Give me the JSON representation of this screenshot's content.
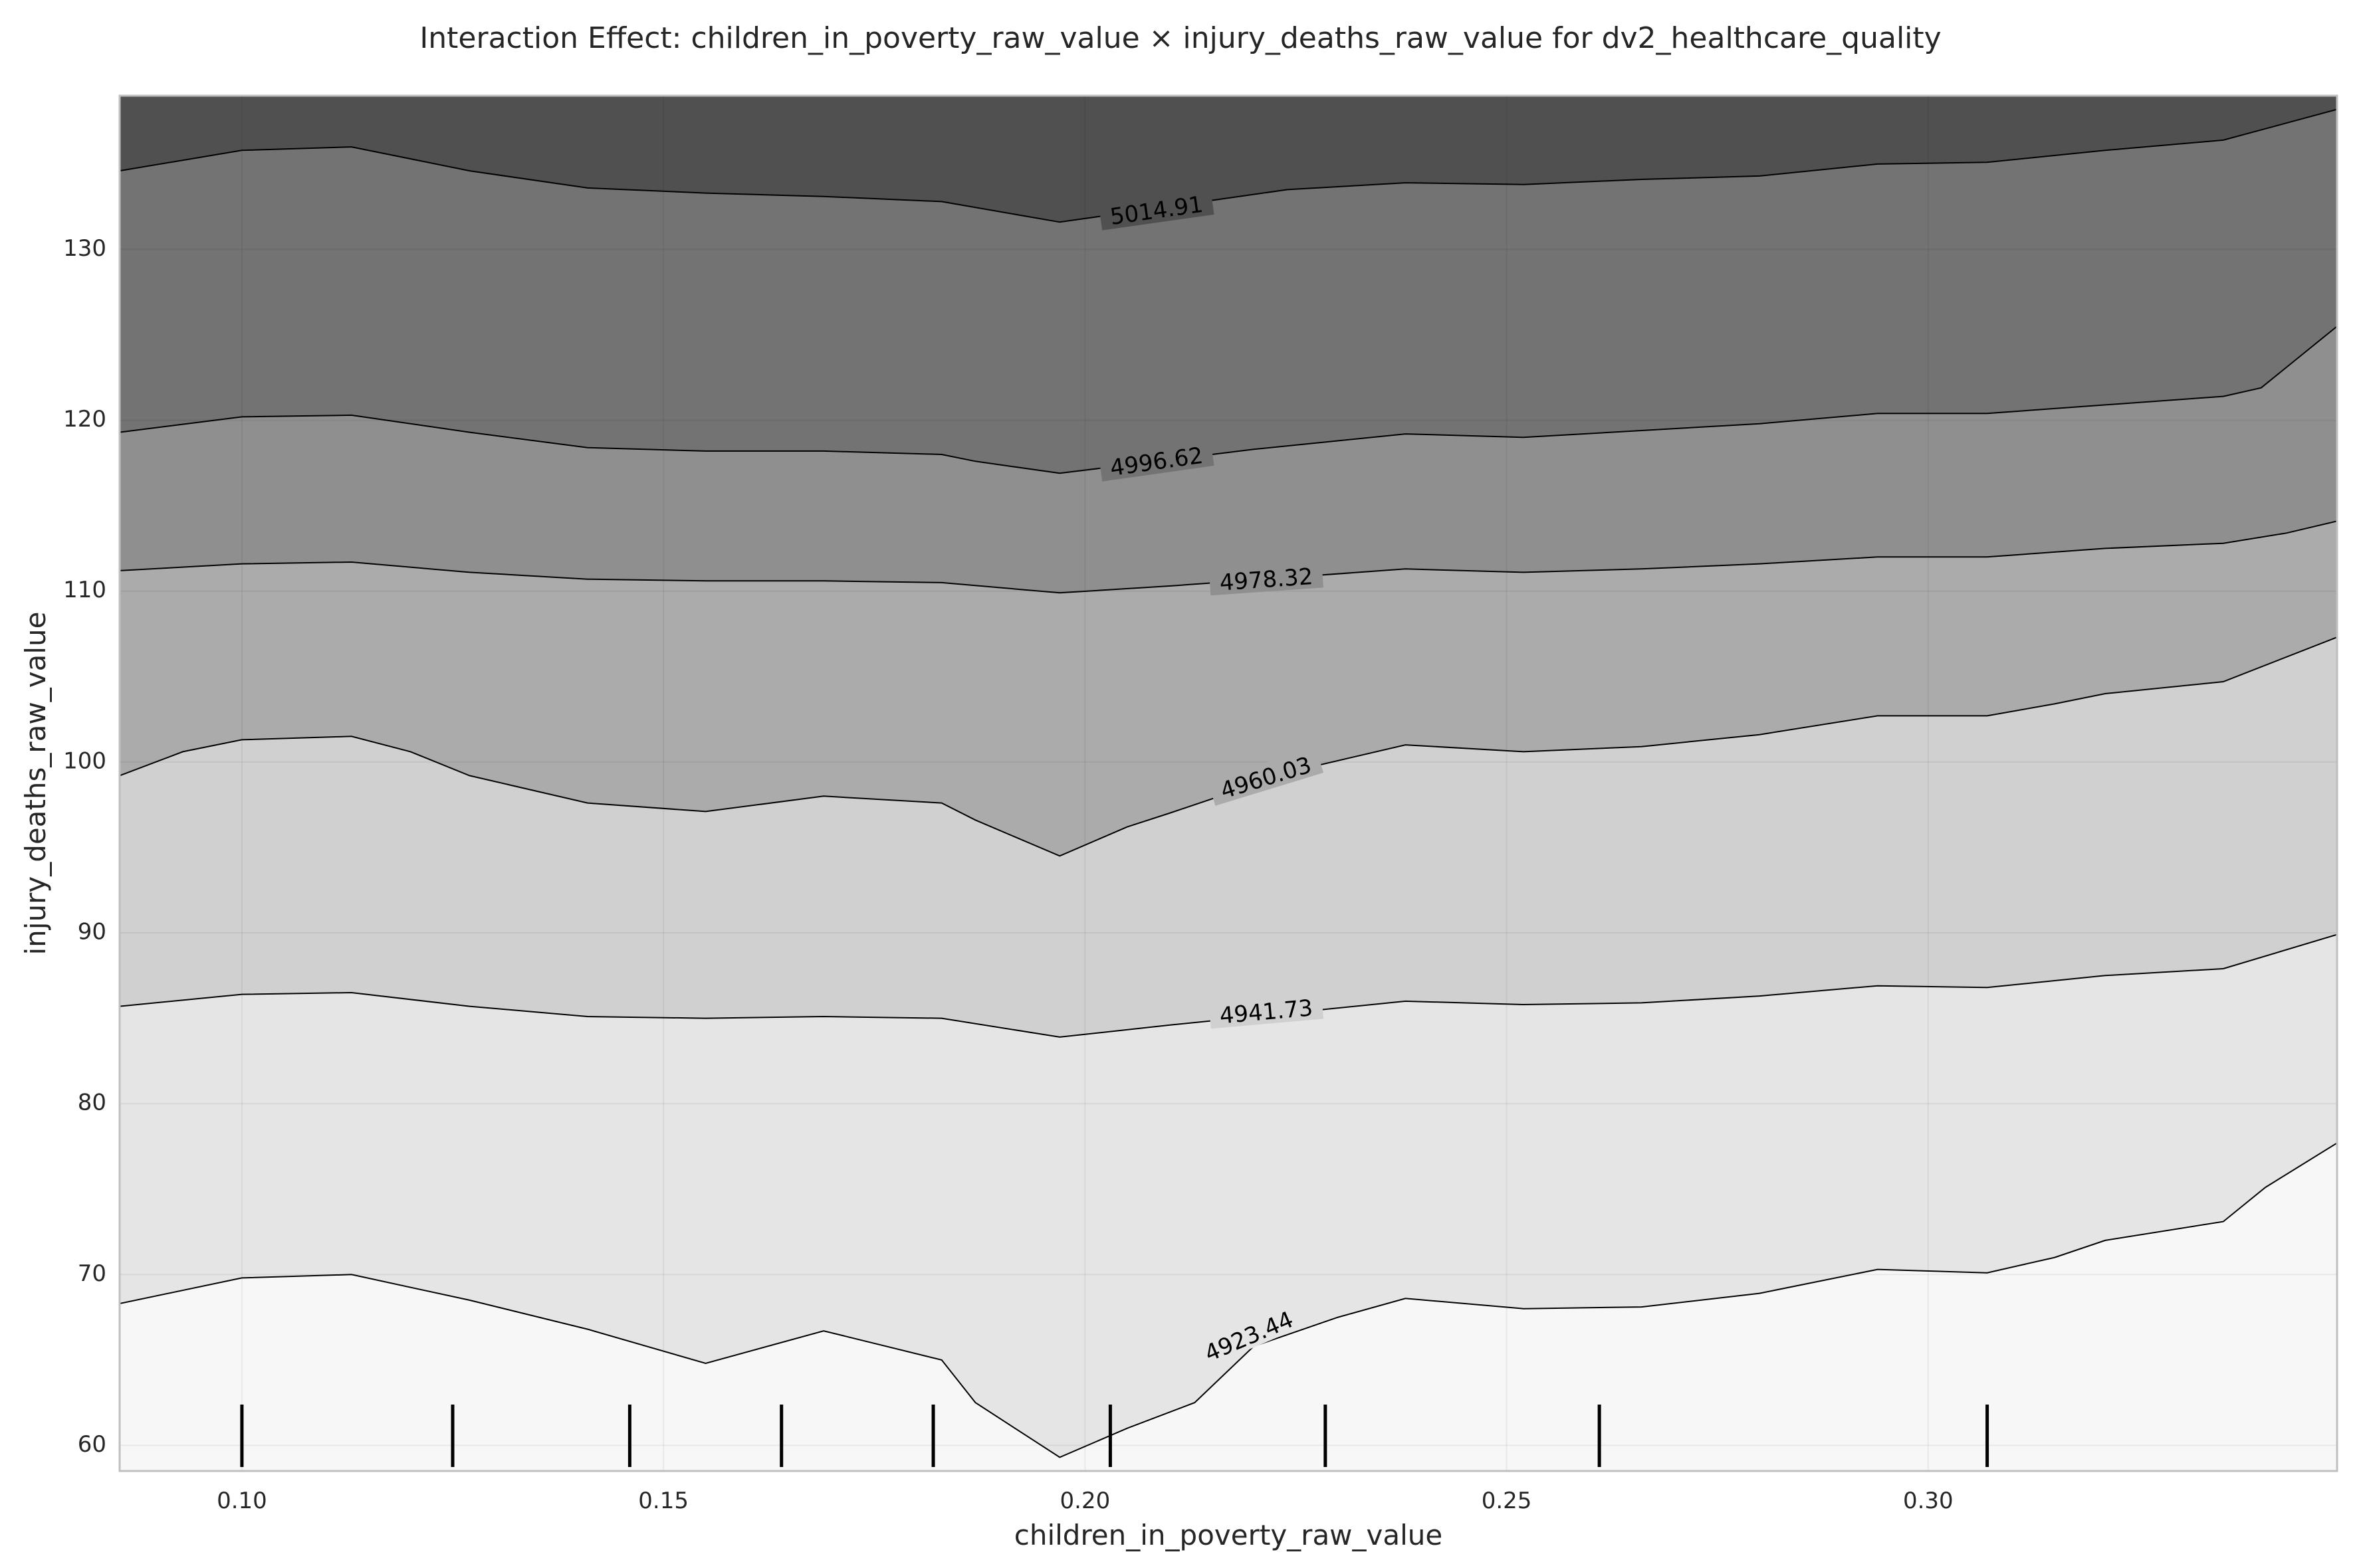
{
  "chart_data": {
    "type": "contour",
    "title": "Interaction Effect: children_in_poverty_raw_value × injury_deaths_raw_value for dv2_healthcare_quality",
    "xlabel": "children_in_poverty_raw_value",
    "ylabel": "injury_deaths_raw_value",
    "xlim": [
      0.0855,
      0.3485
    ],
    "ylim": [
      58.5,
      139
    ],
    "x_ticks": [
      0.1,
      0.15,
      0.2,
      0.25,
      0.3
    ],
    "x_tick_labels": [
      "0.10",
      "0.15",
      "0.20",
      "0.25",
      "0.30"
    ],
    "y_ticks": [
      60,
      70,
      80,
      90,
      100,
      110,
      120,
      130
    ],
    "y_tick_labels": [
      "60",
      "70",
      "80",
      "90",
      "100",
      "110",
      "120",
      "130"
    ],
    "grid": true,
    "colormap": "Greys",
    "level_colors": [
      "#f7f7f7",
      "#e5e5e5",
      "#d0d0d0",
      "#ababab",
      "#8f8f8f",
      "#737373",
      "#505050"
    ],
    "contour_levels": [
      {
        "label": "4923.44",
        "label_at": [
          0.2195,
          66.3
        ],
        "label_angle": -23,
        "points": [
          [
            0.0855,
            68.3
          ],
          [
            0.1,
            69.8
          ],
          [
            0.113,
            70.0
          ],
          [
            0.127,
            68.5
          ],
          [
            0.141,
            66.8
          ],
          [
            0.155,
            64.8
          ],
          [
            0.169,
            66.7
          ],
          [
            0.183,
            65.0
          ],
          [
            0.187,
            62.5
          ],
          [
            0.197,
            59.3
          ],
          [
            0.205,
            61.0
          ],
          [
            0.213,
            62.5
          ],
          [
            0.22,
            65.8
          ],
          [
            0.23,
            67.5
          ],
          [
            0.238,
            68.6
          ],
          [
            0.252,
            68.0
          ],
          [
            0.266,
            68.1
          ],
          [
            0.28,
            68.9
          ],
          [
            0.294,
            70.3
          ],
          [
            0.307,
            70.1
          ],
          [
            0.315,
            71.0
          ],
          [
            0.321,
            72.0
          ],
          [
            0.335,
            73.1
          ],
          [
            0.34,
            75.1
          ],
          [
            0.3485,
            77.7
          ]
        ]
      },
      {
        "label": "4941.73",
        "label_at": [
          0.2215,
          85.3
        ],
        "label_angle": -5,
        "points": [
          [
            0.0855,
            85.7
          ],
          [
            0.1,
            86.4
          ],
          [
            0.113,
            86.5
          ],
          [
            0.127,
            85.7
          ],
          [
            0.141,
            85.1
          ],
          [
            0.155,
            85.0
          ],
          [
            0.169,
            85.1
          ],
          [
            0.183,
            85.0
          ],
          [
            0.197,
            83.9
          ],
          [
            0.21,
            84.6
          ],
          [
            0.238,
            86.0
          ],
          [
            0.252,
            85.8
          ],
          [
            0.266,
            85.9
          ],
          [
            0.28,
            86.3
          ],
          [
            0.294,
            86.9
          ],
          [
            0.307,
            86.8
          ],
          [
            0.321,
            87.5
          ],
          [
            0.335,
            87.9
          ],
          [
            0.3485,
            89.9
          ]
        ]
      },
      {
        "label": "4960.03",
        "label_at": [
          0.2215,
          99.0
        ],
        "label_angle": -17,
        "points": [
          [
            0.0855,
            99.2
          ],
          [
            0.093,
            100.6
          ],
          [
            0.1,
            101.3
          ],
          [
            0.113,
            101.5
          ],
          [
            0.12,
            100.6
          ],
          [
            0.127,
            99.2
          ],
          [
            0.141,
            97.6
          ],
          [
            0.155,
            97.1
          ],
          [
            0.169,
            98.0
          ],
          [
            0.183,
            97.6
          ],
          [
            0.187,
            96.6
          ],
          [
            0.197,
            94.5
          ],
          [
            0.205,
            96.2
          ],
          [
            0.21,
            97.0
          ],
          [
            0.225,
            99.5
          ],
          [
            0.238,
            101.0
          ],
          [
            0.252,
            100.6
          ],
          [
            0.266,
            100.9
          ],
          [
            0.28,
            101.6
          ],
          [
            0.294,
            102.7
          ],
          [
            0.307,
            102.7
          ],
          [
            0.315,
            103.4
          ],
          [
            0.321,
            104.0
          ],
          [
            0.335,
            104.7
          ],
          [
            0.3485,
            107.3
          ]
        ]
      },
      {
        "label": "4978.32",
        "label_at": [
          0.2215,
          110.6
        ],
        "label_angle": -4,
        "points": [
          [
            0.0855,
            111.2
          ],
          [
            0.1,
            111.6
          ],
          [
            0.113,
            111.7
          ],
          [
            0.127,
            111.1
          ],
          [
            0.141,
            110.7
          ],
          [
            0.155,
            110.6
          ],
          [
            0.169,
            110.6
          ],
          [
            0.183,
            110.5
          ],
          [
            0.197,
            109.9
          ],
          [
            0.21,
            110.3
          ],
          [
            0.238,
            111.3
          ],
          [
            0.252,
            111.1
          ],
          [
            0.266,
            111.3
          ],
          [
            0.28,
            111.6
          ],
          [
            0.294,
            112.0
          ],
          [
            0.307,
            112.0
          ],
          [
            0.321,
            112.5
          ],
          [
            0.335,
            112.8
          ],
          [
            0.3425,
            113.4
          ],
          [
            0.3485,
            114.1
          ]
        ]
      },
      {
        "label": "4996.62",
        "label_at": [
          0.2085,
          117.5
        ],
        "label_angle": -8,
        "points": [
          [
            0.0855,
            119.3
          ],
          [
            0.1,
            120.2
          ],
          [
            0.113,
            120.3
          ],
          [
            0.127,
            119.3
          ],
          [
            0.141,
            118.4
          ],
          [
            0.155,
            118.2
          ],
          [
            0.169,
            118.2
          ],
          [
            0.183,
            118.0
          ],
          [
            0.187,
            117.6
          ],
          [
            0.197,
            116.9
          ],
          [
            0.22,
            118.3
          ],
          [
            0.238,
            119.2
          ],
          [
            0.252,
            119.0
          ],
          [
            0.266,
            119.4
          ],
          [
            0.28,
            119.8
          ],
          [
            0.294,
            120.4
          ],
          [
            0.307,
            120.4
          ],
          [
            0.321,
            120.9
          ],
          [
            0.335,
            121.4
          ],
          [
            0.3395,
            121.9
          ],
          [
            0.3485,
            125.5
          ]
        ]
      },
      {
        "label": "5014.91",
        "label_at": [
          0.2085,
          132.2
        ],
        "label_angle": -8,
        "points": [
          [
            0.0855,
            134.6
          ],
          [
            0.1,
            135.8
          ],
          [
            0.113,
            136.0
          ],
          [
            0.127,
            134.6
          ],
          [
            0.141,
            133.6
          ],
          [
            0.155,
            133.3
          ],
          [
            0.169,
            133.1
          ],
          [
            0.183,
            132.8
          ],
          [
            0.197,
            131.6
          ],
          [
            0.224,
            133.5
          ],
          [
            0.238,
            133.9
          ],
          [
            0.252,
            133.8
          ],
          [
            0.266,
            134.1
          ],
          [
            0.28,
            134.3
          ],
          [
            0.294,
            135.0
          ],
          [
            0.307,
            135.1
          ],
          [
            0.321,
            135.8
          ],
          [
            0.335,
            136.4
          ],
          [
            0.3485,
            138.2
          ]
        ]
      }
    ],
    "rug_x": [
      0.1,
      0.125,
      0.146,
      0.164,
      0.182,
      0.203,
      0.2285,
      0.261,
      0.307
    ]
  }
}
